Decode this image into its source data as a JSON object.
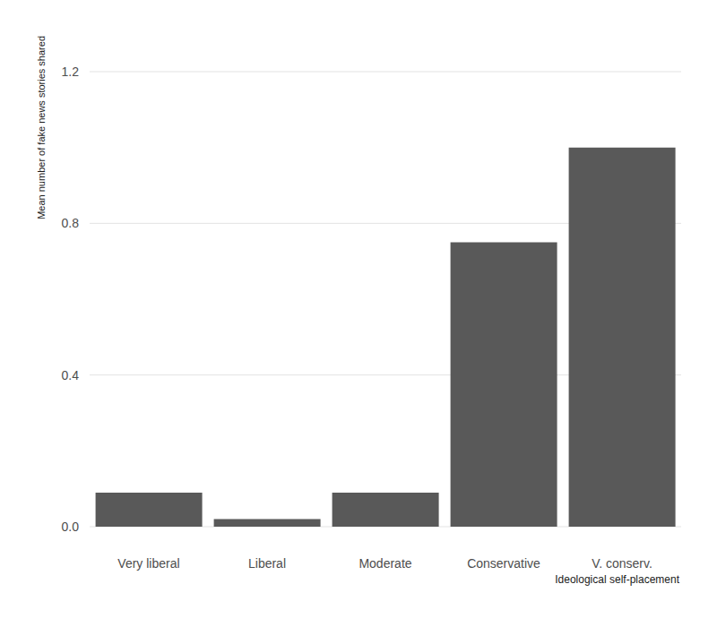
{
  "chart_data": {
    "type": "bar",
    "categories": [
      "Very liberal",
      "Liberal",
      "Moderate",
      "Conservative",
      "V. conserv."
    ],
    "values": [
      0.09,
      0.02,
      0.09,
      0.75,
      1.0
    ],
    "color": "#595959",
    "x_label": "Ideological self-placement",
    "y_label": "Mean number of fake news stories shared",
    "ylim": [
      0,
      1.2
    ],
    "yticks": [
      {
        "value": 0,
        "label": "0.0"
      },
      0.4,
      0.8,
      1.2
    ],
    "grid": true
  }
}
